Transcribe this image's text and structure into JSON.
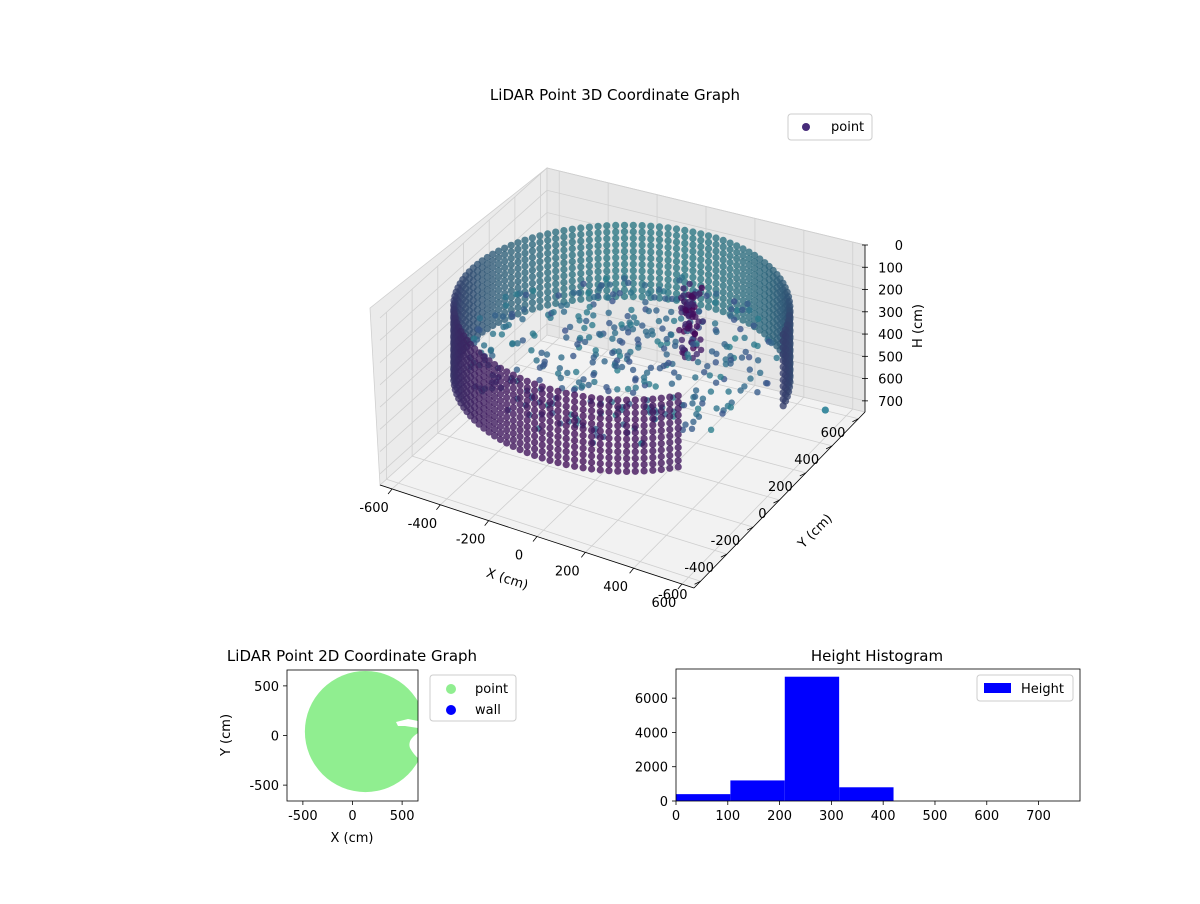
{
  "chart_data": [
    {
      "type": "scatter3d",
      "title": "LiDAR Point 3D Coordinate Graph",
      "xlabel": "X (cm)",
      "ylabel": "Y (cm)",
      "zlabel": "H (cm)",
      "xlim": [
        -650,
        650
      ],
      "ylim": [
        -650,
        650
      ],
      "zlim": [
        0,
        750
      ],
      "z_inverted": true,
      "xticks": [
        -600,
        -400,
        -200,
        0,
        200,
        400,
        600
      ],
      "yticks": [
        -600,
        -400,
        -200,
        0,
        200,
        400,
        600
      ],
      "zticks": [
        0,
        100,
        200,
        300,
        400,
        500,
        600,
        700
      ],
      "legend": {
        "position": "top-right",
        "entries": [
          "point"
        ]
      },
      "grid": true,
      "colormap": [
        "#440154",
        "#3b528b",
        "#21918c"
      ],
      "series": [
        {
          "name": "point",
          "description_shape": "cylindrical wall of points",
          "wall_radius": 610,
          "wall_center": [
            0,
            0
          ],
          "wall_height_range": [
            100,
            420
          ],
          "wall_angle_gap_deg": [
            -40,
            10
          ],
          "floor_height": 300,
          "interior_cluster": {
            "x": 150,
            "y": 250,
            "z_range": [
              100,
              400
            ]
          },
          "outlier": {
            "x": 520,
            "y": 590,
            "z": 740
          }
        }
      ]
    },
    {
      "type": "scatter",
      "title": "LiDAR Point 2D Coordinate Graph",
      "xlabel": "X (cm)",
      "ylabel": "Y (cm)",
      "xlim": [
        -660,
        660
      ],
      "ylim": [
        -660,
        660
      ],
      "xticks": [
        -500,
        0,
        500
      ],
      "yticks": [
        -500,
        0,
        500
      ],
      "legend": {
        "position": "outside-right",
        "entries": [
          "point",
          "wall"
        ]
      },
      "series": [
        {
          "name": "point",
          "color": "#90ee90",
          "shape": "filled disk",
          "center": [
            130,
            40
          ],
          "radius": 610
        },
        {
          "name": "wall",
          "color": "#0000ff"
        }
      ]
    },
    {
      "type": "histogram",
      "title": "Height Histogram",
      "xlim": [
        0,
        780
      ],
      "ylim": [
        0,
        7700
      ],
      "xticks": [
        0,
        100,
        200,
        300,
        400,
        500,
        600,
        700
      ],
      "yticks": [
        0,
        2000,
        4000,
        6000
      ],
      "legend": {
        "position": "top-right",
        "entries": [
          "Height"
        ]
      },
      "color": "#0000ff",
      "series": [
        {
          "name": "Height",
          "bins": [
            {
              "x0": 0,
              "x1": 105,
              "count": 400
            },
            {
              "x0": 105,
              "x1": 210,
              "count": 1200
            },
            {
              "x0": 210,
              "x1": 315,
              "count": 7250
            },
            {
              "x0": 315,
              "x1": 420,
              "count": 800
            },
            {
              "x0": 420,
              "x1": 525,
              "count": 0
            },
            {
              "x0": 525,
              "x1": 630,
              "count": 0
            },
            {
              "x0": 630,
              "x1": 735,
              "count": 0
            }
          ]
        }
      ]
    }
  ]
}
